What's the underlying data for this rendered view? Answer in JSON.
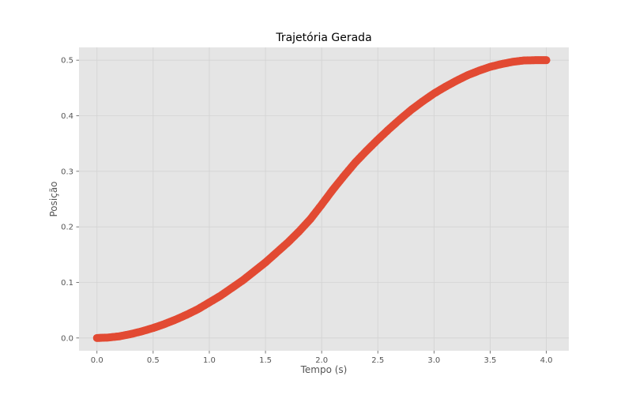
{
  "chart_data": {
    "type": "scatter",
    "title": "Trajetória Gerada",
    "xlabel": "Tempo (s)",
    "ylabel": "Posição",
    "xlim": [
      -0.16,
      4.2
    ],
    "ylim": [
      -0.023,
      0.523
    ],
    "xticks": [
      "0.0",
      "0.5",
      "1.0",
      "1.5",
      "2.0",
      "2.5",
      "3.0",
      "3.5",
      "4.0"
    ],
    "yticks": [
      "0.0",
      "0.1",
      "0.2",
      "0.3",
      "0.4",
      "0.5"
    ],
    "grid": true,
    "series": [
      {
        "x": [
          0.0,
          0.1,
          0.2,
          0.3,
          0.4,
          0.5,
          0.6,
          0.7,
          0.8,
          0.9,
          1.0,
          1.1,
          1.2,
          1.3,
          1.4,
          1.5,
          1.6,
          1.7,
          1.8,
          1.9,
          2.0,
          2.1,
          2.2,
          2.3,
          2.4,
          2.5,
          2.6,
          2.7,
          2.8,
          2.9,
          3.0,
          3.1,
          3.2,
          3.3,
          3.4,
          3.5,
          3.6,
          3.7,
          3.8,
          3.9,
          4.0
        ],
        "y": [
          0.0,
          0.0008,
          0.003,
          0.007,
          0.012,
          0.018,
          0.025,
          0.033,
          0.042,
          0.052,
          0.064,
          0.076,
          0.09,
          0.104,
          0.12,
          0.136,
          0.154,
          0.172,
          0.192,
          0.214,
          0.24,
          0.267,
          0.292,
          0.316,
          0.337,
          0.357,
          0.376,
          0.394,
          0.411,
          0.426,
          0.44,
          0.452,
          0.463,
          0.473,
          0.481,
          0.488,
          0.493,
          0.497,
          0.4995,
          0.5,
          0.5
        ]
      }
    ]
  },
  "colors": {
    "plot_background": "#e5e5e5",
    "grid": "#d3d3d3",
    "marker": "#e24a33"
  }
}
